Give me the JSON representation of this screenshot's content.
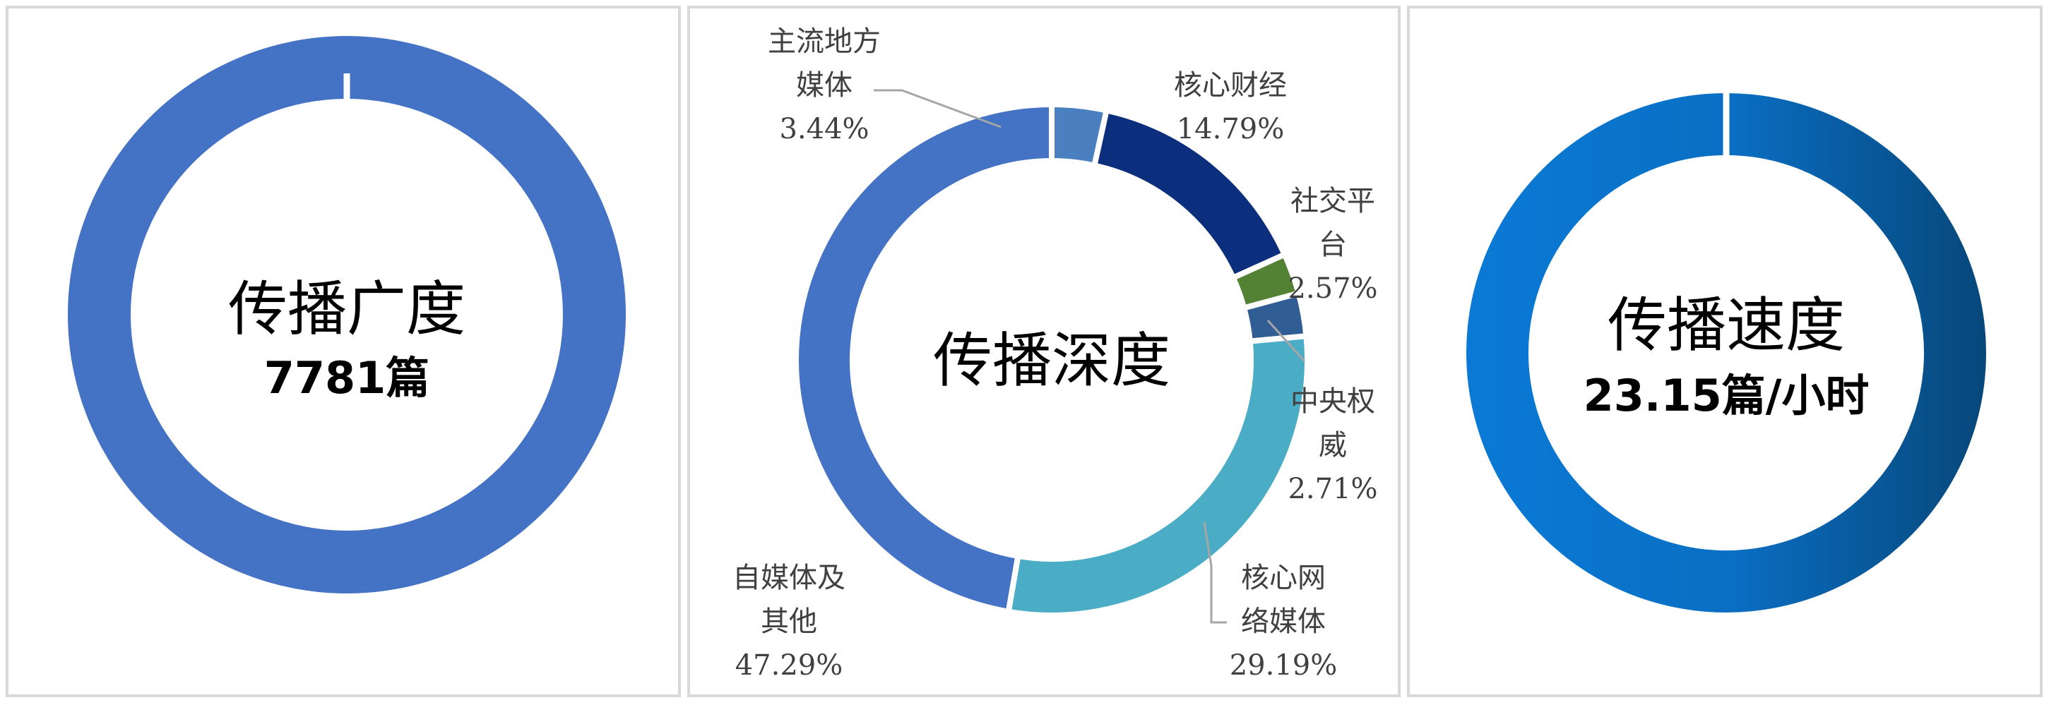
{
  "chart_data": [
    {
      "type": "pie",
      "title": "传播广度",
      "value_text": "7781篇",
      "categories": [
        ""
      ],
      "values": [
        100
      ],
      "colors": [
        "#4472c4"
      ]
    },
    {
      "type": "pie",
      "title": "传播深度",
      "categories": [
        "主流地方媒体",
        "核心财经",
        "社交平台",
        "中央权威",
        "核心网络媒体",
        "自媒体及其他"
      ],
      "label_lines": [
        [
          "主流地方",
          "媒体"
        ],
        [
          "核心财经"
        ],
        [
          "社交平",
          "台"
        ],
        [
          "中央权",
          "威"
        ],
        [
          "核心网",
          "络媒体"
        ],
        [
          "自媒体及",
          "其他"
        ]
      ],
      "values": [
        3.44,
        14.79,
        2.57,
        2.71,
        29.19,
        47.29
      ],
      "percent_labels": [
        "3.44%",
        "14.79%",
        "2.57%",
        "2.71%",
        "29.19%",
        "47.29%"
      ],
      "colors": [
        "#4a7fc0",
        "#0b2f7d",
        "#548235",
        "#2f5d94",
        "#4bacc6",
        "#4472c4"
      ]
    },
    {
      "type": "pie",
      "title": "传播速度",
      "value_text": "23.15篇/小时",
      "categories": [
        ""
      ],
      "values": [
        100
      ],
      "colors": [
        "#0a76cf"
      ]
    }
  ]
}
